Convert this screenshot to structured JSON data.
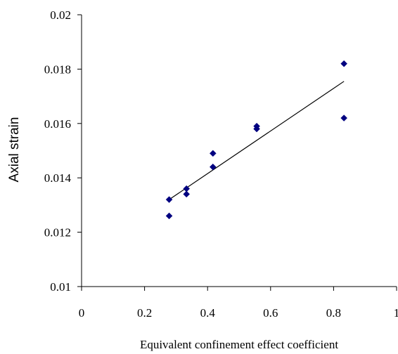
{
  "chart_data": {
    "type": "scatter",
    "title": "",
    "xlabel": "Equivalent confinement effect coefficient",
    "ylabel": "Axial strain",
    "xlim": [
      0,
      1
    ],
    "ylim": [
      0.01,
      0.02
    ],
    "x_ticks": [
      "0",
      "0.2",
      "0.4",
      "0.6",
      "0.8",
      "1"
    ],
    "y_ticks": [
      "0.01",
      "0.012",
      "0.014",
      "0.016",
      "0.018",
      "0.02"
    ],
    "grid": false,
    "legend": "none",
    "series": [
      {
        "marker": "diamond",
        "color": "#000080",
        "points": [
          {
            "x": 0.278,
            "y": 0.0132
          },
          {
            "x": 0.278,
            "y": 0.0126
          },
          {
            "x": 0.333,
            "y": 0.0136
          },
          {
            "x": 0.333,
            "y": 0.0134
          },
          {
            "x": 0.417,
            "y": 0.0149
          },
          {
            "x": 0.417,
            "y": 0.0144
          },
          {
            "x": 0.556,
            "y": 0.0159
          },
          {
            "x": 0.556,
            "y": 0.0158
          },
          {
            "x": 0.833,
            "y": 0.0182
          },
          {
            "x": 0.833,
            "y": 0.0162
          }
        ]
      }
    ],
    "trendline": {
      "type": "linear",
      "color": "#000000",
      "from": {
        "x": 0.278,
        "y": 0.0132
      },
      "to": {
        "x": 0.833,
        "y": 0.01755
      }
    }
  }
}
